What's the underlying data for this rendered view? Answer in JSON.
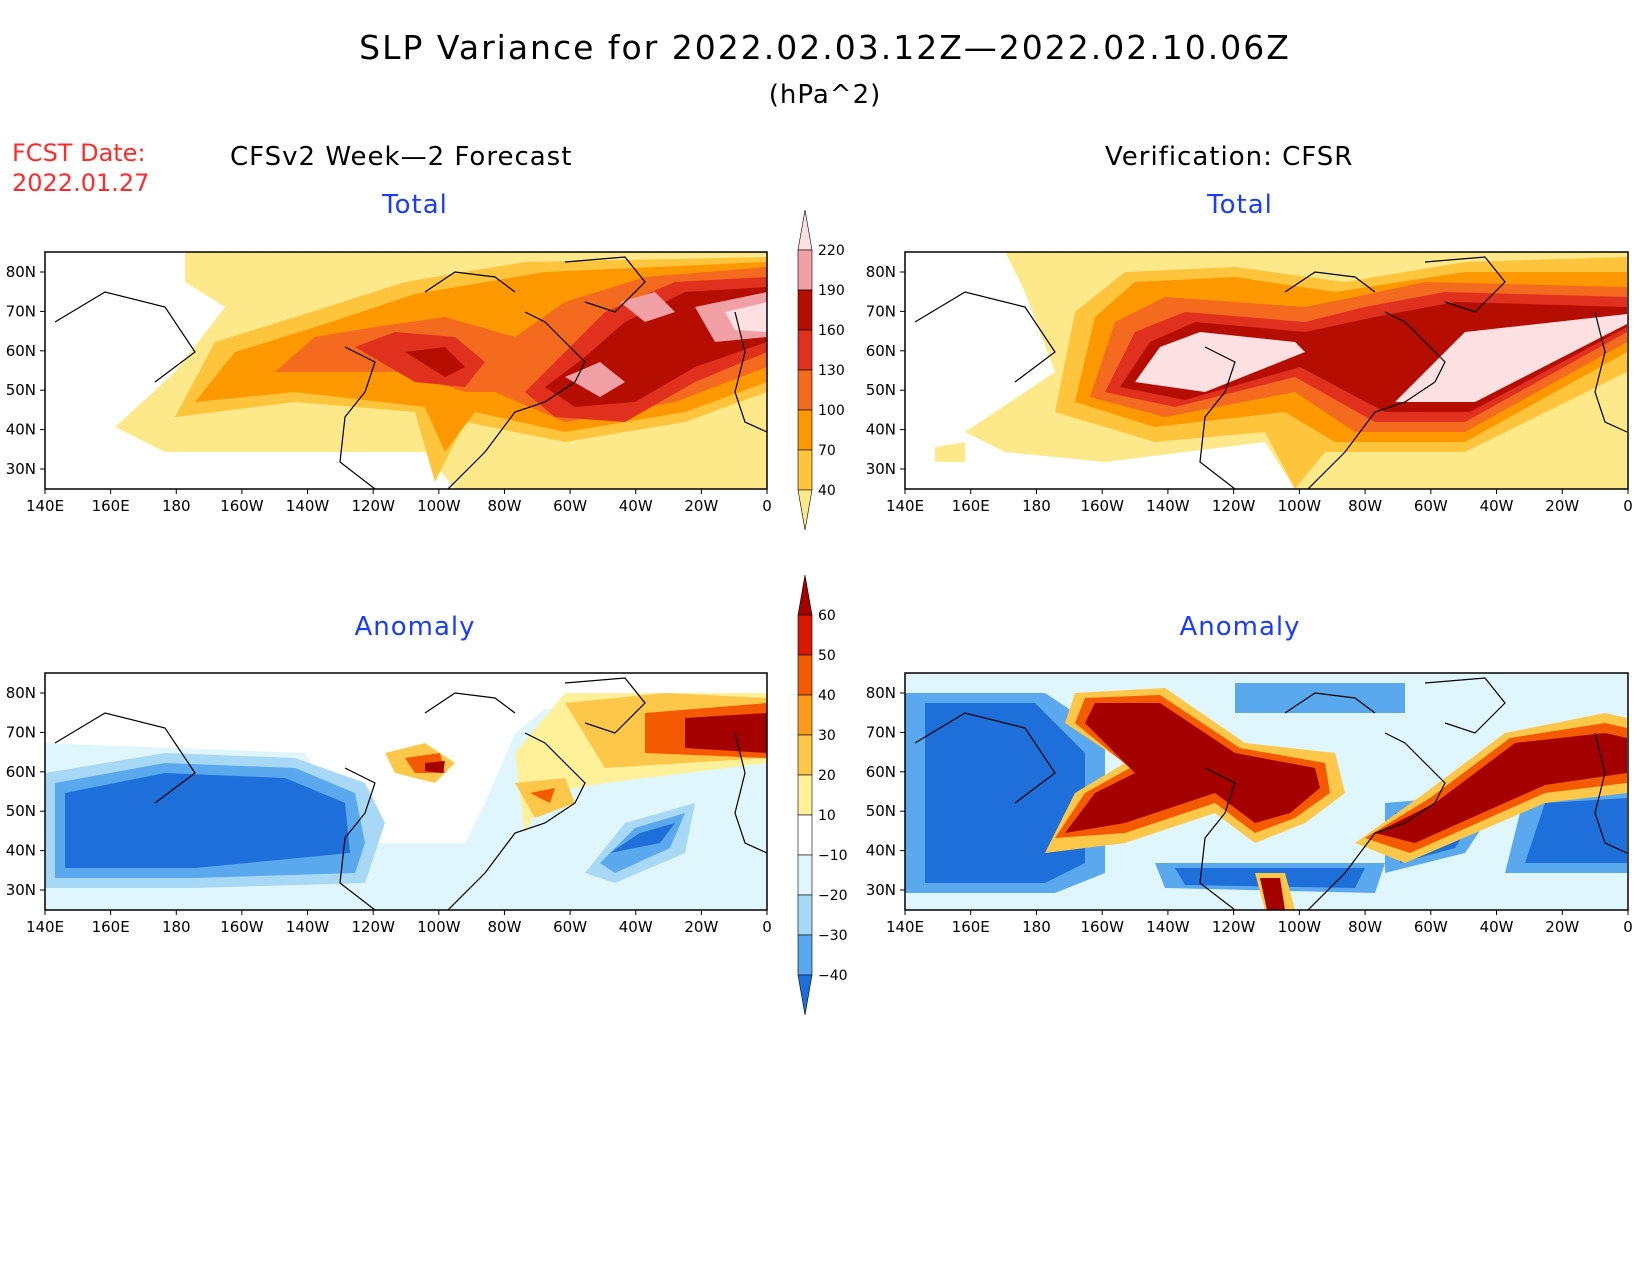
{
  "title": "SLP Variance for 2022.02.03.12Z—2022.02.10.06Z",
  "units": "(hPa^2)",
  "fcst_date": {
    "label": "FCST Date:",
    "value": "2022.01.27"
  },
  "left_header": "CFSv2 Week—2 Forecast",
  "right_header": "Verification: CFSR",
  "panels": {
    "forecast_total": {
      "title": "Total"
    },
    "verification_total": {
      "title": "Total"
    },
    "forecast_anomaly": {
      "title": "Anomaly"
    },
    "verification_anomaly": {
      "title": "Anomaly"
    }
  },
  "axes": {
    "lon_labels": [
      "140E",
      "160E",
      "180",
      "160W",
      "140W",
      "120W",
      "100W",
      "80W",
      "60W",
      "40W",
      "20W",
      "0"
    ],
    "lat_labels": [
      "80N",
      "70N",
      "60N",
      "50N",
      "40N",
      "30N"
    ]
  },
  "colorbars": {
    "total": {
      "levels": [
        "40",
        "70",
        "100",
        "130",
        "160",
        "190",
        "220"
      ],
      "colors": [
        "#fee98a",
        "#fdc43c",
        "#fd9800",
        "#f46a1e",
        "#e0301e",
        "#b50e00",
        "#f1a0a6",
        "#fde0e2"
      ]
    },
    "anomaly": {
      "levels": [
        "60",
        "50",
        "40",
        "30",
        "20",
        "10",
        "−10",
        "−20",
        "−30",
        "−40"
      ],
      "colors": [
        "#a50000",
        "#d91a00",
        "#f45a00",
        "#fd9b1a",
        "#fdc84a",
        "#fff09a",
        "#ffffff",
        "#dff6fd",
        "#a7d8f6",
        "#5aa9ee",
        "#1e6fd9"
      ]
    }
  },
  "colors": {
    "fcst_label": "#ff2b2b",
    "panel_title": "#1a3cff"
  }
}
